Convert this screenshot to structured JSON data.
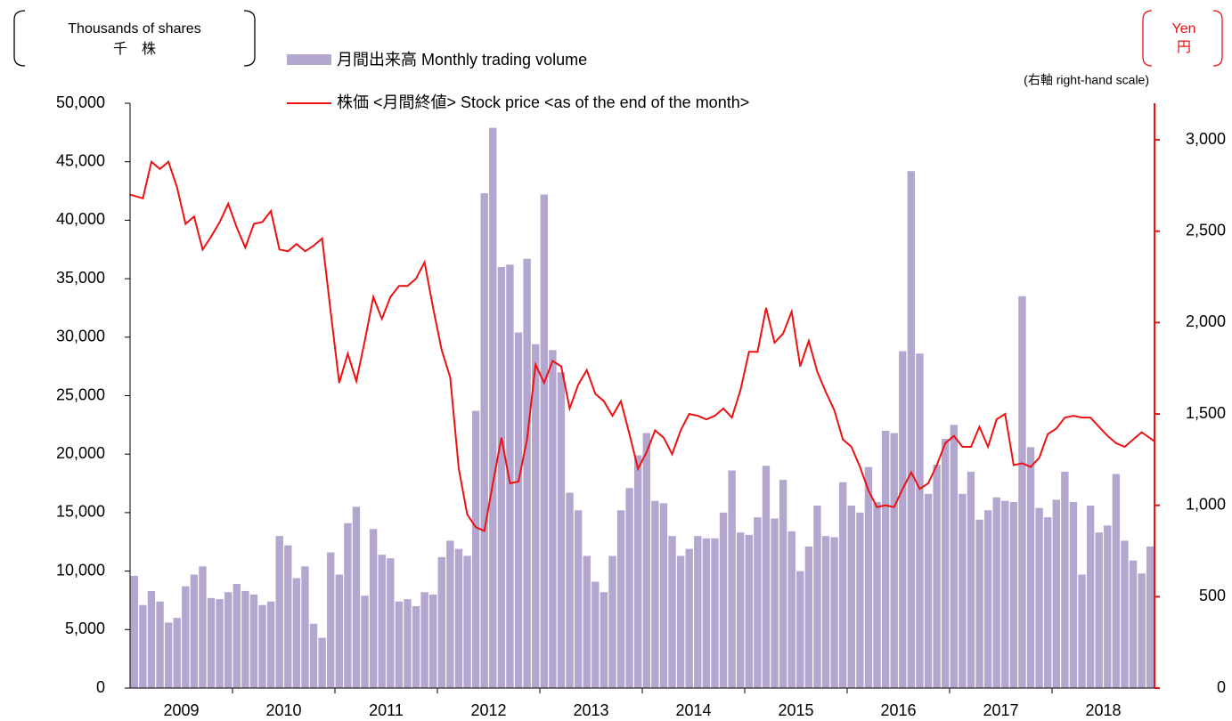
{
  "chart_data": {
    "type": "bar",
    "y_axis_label": [
      "Thousands of shares",
      "千　株"
    ],
    "y2_axis_label": [
      "Yen",
      "円"
    ],
    "y2_note": "(右軸 right-hand scale)",
    "categories": [
      "2009",
      null,
      null,
      null,
      null,
      null,
      null,
      null,
      null,
      null,
      null,
      null,
      "2010",
      null,
      null,
      null,
      null,
      null,
      null,
      null,
      null,
      null,
      null,
      null,
      "2011",
      null,
      null,
      null,
      null,
      null,
      null,
      null,
      null,
      null,
      null,
      null,
      "2012",
      null,
      null,
      null,
      null,
      null,
      null,
      null,
      null,
      null,
      null,
      null,
      "2013",
      null,
      null,
      null,
      null,
      null,
      null,
      null,
      null,
      null,
      null,
      null,
      "2014",
      null,
      null,
      null,
      null,
      null,
      null,
      null,
      null,
      null,
      null,
      null,
      "2015",
      null,
      null,
      null,
      null,
      null,
      null,
      null,
      null,
      null,
      null,
      null,
      "2016",
      null,
      null,
      null,
      null,
      null,
      null,
      null,
      null,
      null,
      null,
      null,
      "2017",
      null,
      null,
      null,
      null,
      null,
      null,
      null,
      null,
      null,
      null,
      null,
      "2018",
      null,
      null,
      null,
      null,
      null,
      null,
      null,
      null,
      null,
      null,
      null
    ],
    "series": [
      {
        "name": "月間出来高 Monthly trading volume",
        "type": "bar",
        "color": "#b3a6cf",
        "values": [
          9600,
          7100,
          8300,
          7400,
          5600,
          6000,
          8700,
          9700,
          10400,
          7700,
          7600,
          8200,
          8900,
          8300,
          8000,
          7100,
          7400,
          13000,
          12200,
          9400,
          10400,
          5500,
          4300,
          11600,
          9700,
          14100,
          15500,
          7900,
          13600,
          11400,
          11100,
          7400,
          7600,
          7000,
          8200,
          8000,
          11200,
          12600,
          11900,
          11300,
          23700,
          42300,
          47900,
          36000,
          36200,
          30400,
          36700,
          29400,
          42200,
          28900,
          27000,
          16700,
          15200,
          11300,
          9100,
          8200,
          11300,
          15200,
          17100,
          19900,
          21800,
          16000,
          15800,
          13000,
          11300,
          11900,
          13000,
          12800,
          12800,
          15000,
          18600,
          13300,
          13100,
          14600,
          19000,
          14500,
          17800,
          13400,
          10000,
          12100,
          15600,
          13000,
          12900,
          17600,
          15600,
          15000,
          18900,
          15900,
          22000,
          21800,
          28800,
          44200,
          28600,
          16600,
          19100,
          21300,
          22500,
          16600,
          18500,
          14400,
          15200,
          16300,
          16000,
          15900,
          33500,
          20600,
          15400,
          14600,
          16100,
          18500,
          15900,
          9700,
          15600,
          13300,
          13900,
          18300,
          12600,
          10900,
          9800,
          12100
        ]
      },
      {
        "name": "株価 <月間終値> Stock price <as of the end of the month>",
        "type": "line",
        "axis": "y2",
        "color": "#ee1111",
        "values": [
          2700,
          2680,
          2880,
          2840,
          2880,
          2740,
          2540,
          2580,
          2400,
          2470,
          2550,
          2650,
          2520,
          2410,
          2540,
          2550,
          2610,
          2400,
          2390,
          2430,
          2390,
          2420,
          2460,
          2060,
          1670,
          1830,
          1680,
          1900,
          2140,
          2020,
          2140,
          2200,
          2200,
          2240,
          2330,
          2080,
          1850,
          1700,
          1200,
          950,
          880,
          860,
          1120,
          1370,
          1120,
          1130,
          1360,
          1770,
          1670,
          1790,
          1760,
          1530,
          1660,
          1740,
          1610,
          1570,
          1490,
          1570,
          1390,
          1200,
          1290,
          1410,
          1370,
          1280,
          1410,
          1500,
          1490,
          1470,
          1490,
          1530,
          1480,
          1630,
          1840,
          1840,
          2080,
          1890,
          1940,
          2060,
          1760,
          1900,
          1730,
          1620,
          1520,
          1360,
          1320,
          1210,
          1080,
          990,
          1000,
          990,
          1090,
          1180,
          1090,
          1120,
          1220,
          1340,
          1380,
          1320,
          1320,
          1430,
          1320,
          1470,
          1500,
          1220,
          1230,
          1210,
          1260,
          1390,
          1420,
          1480,
          1490,
          1480,
          1480,
          1430,
          1380,
          1340,
          1320,
          1360,
          1400,
          1350
        ]
      }
    ],
    "ylim": [
      0,
      50000
    ],
    "yticks": [
      0,
      {
        "value": 5000,
        "label": "5,000"
      },
      {
        "value": 10000,
        "label": "10,000"
      },
      {
        "value": 15000,
        "label": "15,000"
      },
      {
        "value": 20000,
        "label": "20,000"
      },
      {
        "value": 25000,
        "label": "25,000"
      },
      {
        "value": 30000,
        "label": "30,000"
      },
      {
        "value": 35000,
        "label": "35,000"
      },
      {
        "value": 40000,
        "label": "40,000"
      },
      {
        "value": 45000,
        "label": "45,000"
      },
      {
        "value": 50000,
        "label": "50,000"
      }
    ],
    "y2lim": [
      0,
      3200
    ],
    "y2ticks": [
      0,
      500,
      {
        "value": 1000,
        "label": "1,000"
      },
      {
        "value": 1500,
        "label": "1,500"
      },
      {
        "value": 2000,
        "label": "2,000"
      },
      {
        "value": 2500,
        "label": "2,500"
      },
      {
        "value": 3000,
        "label": "3,000"
      }
    ]
  }
}
